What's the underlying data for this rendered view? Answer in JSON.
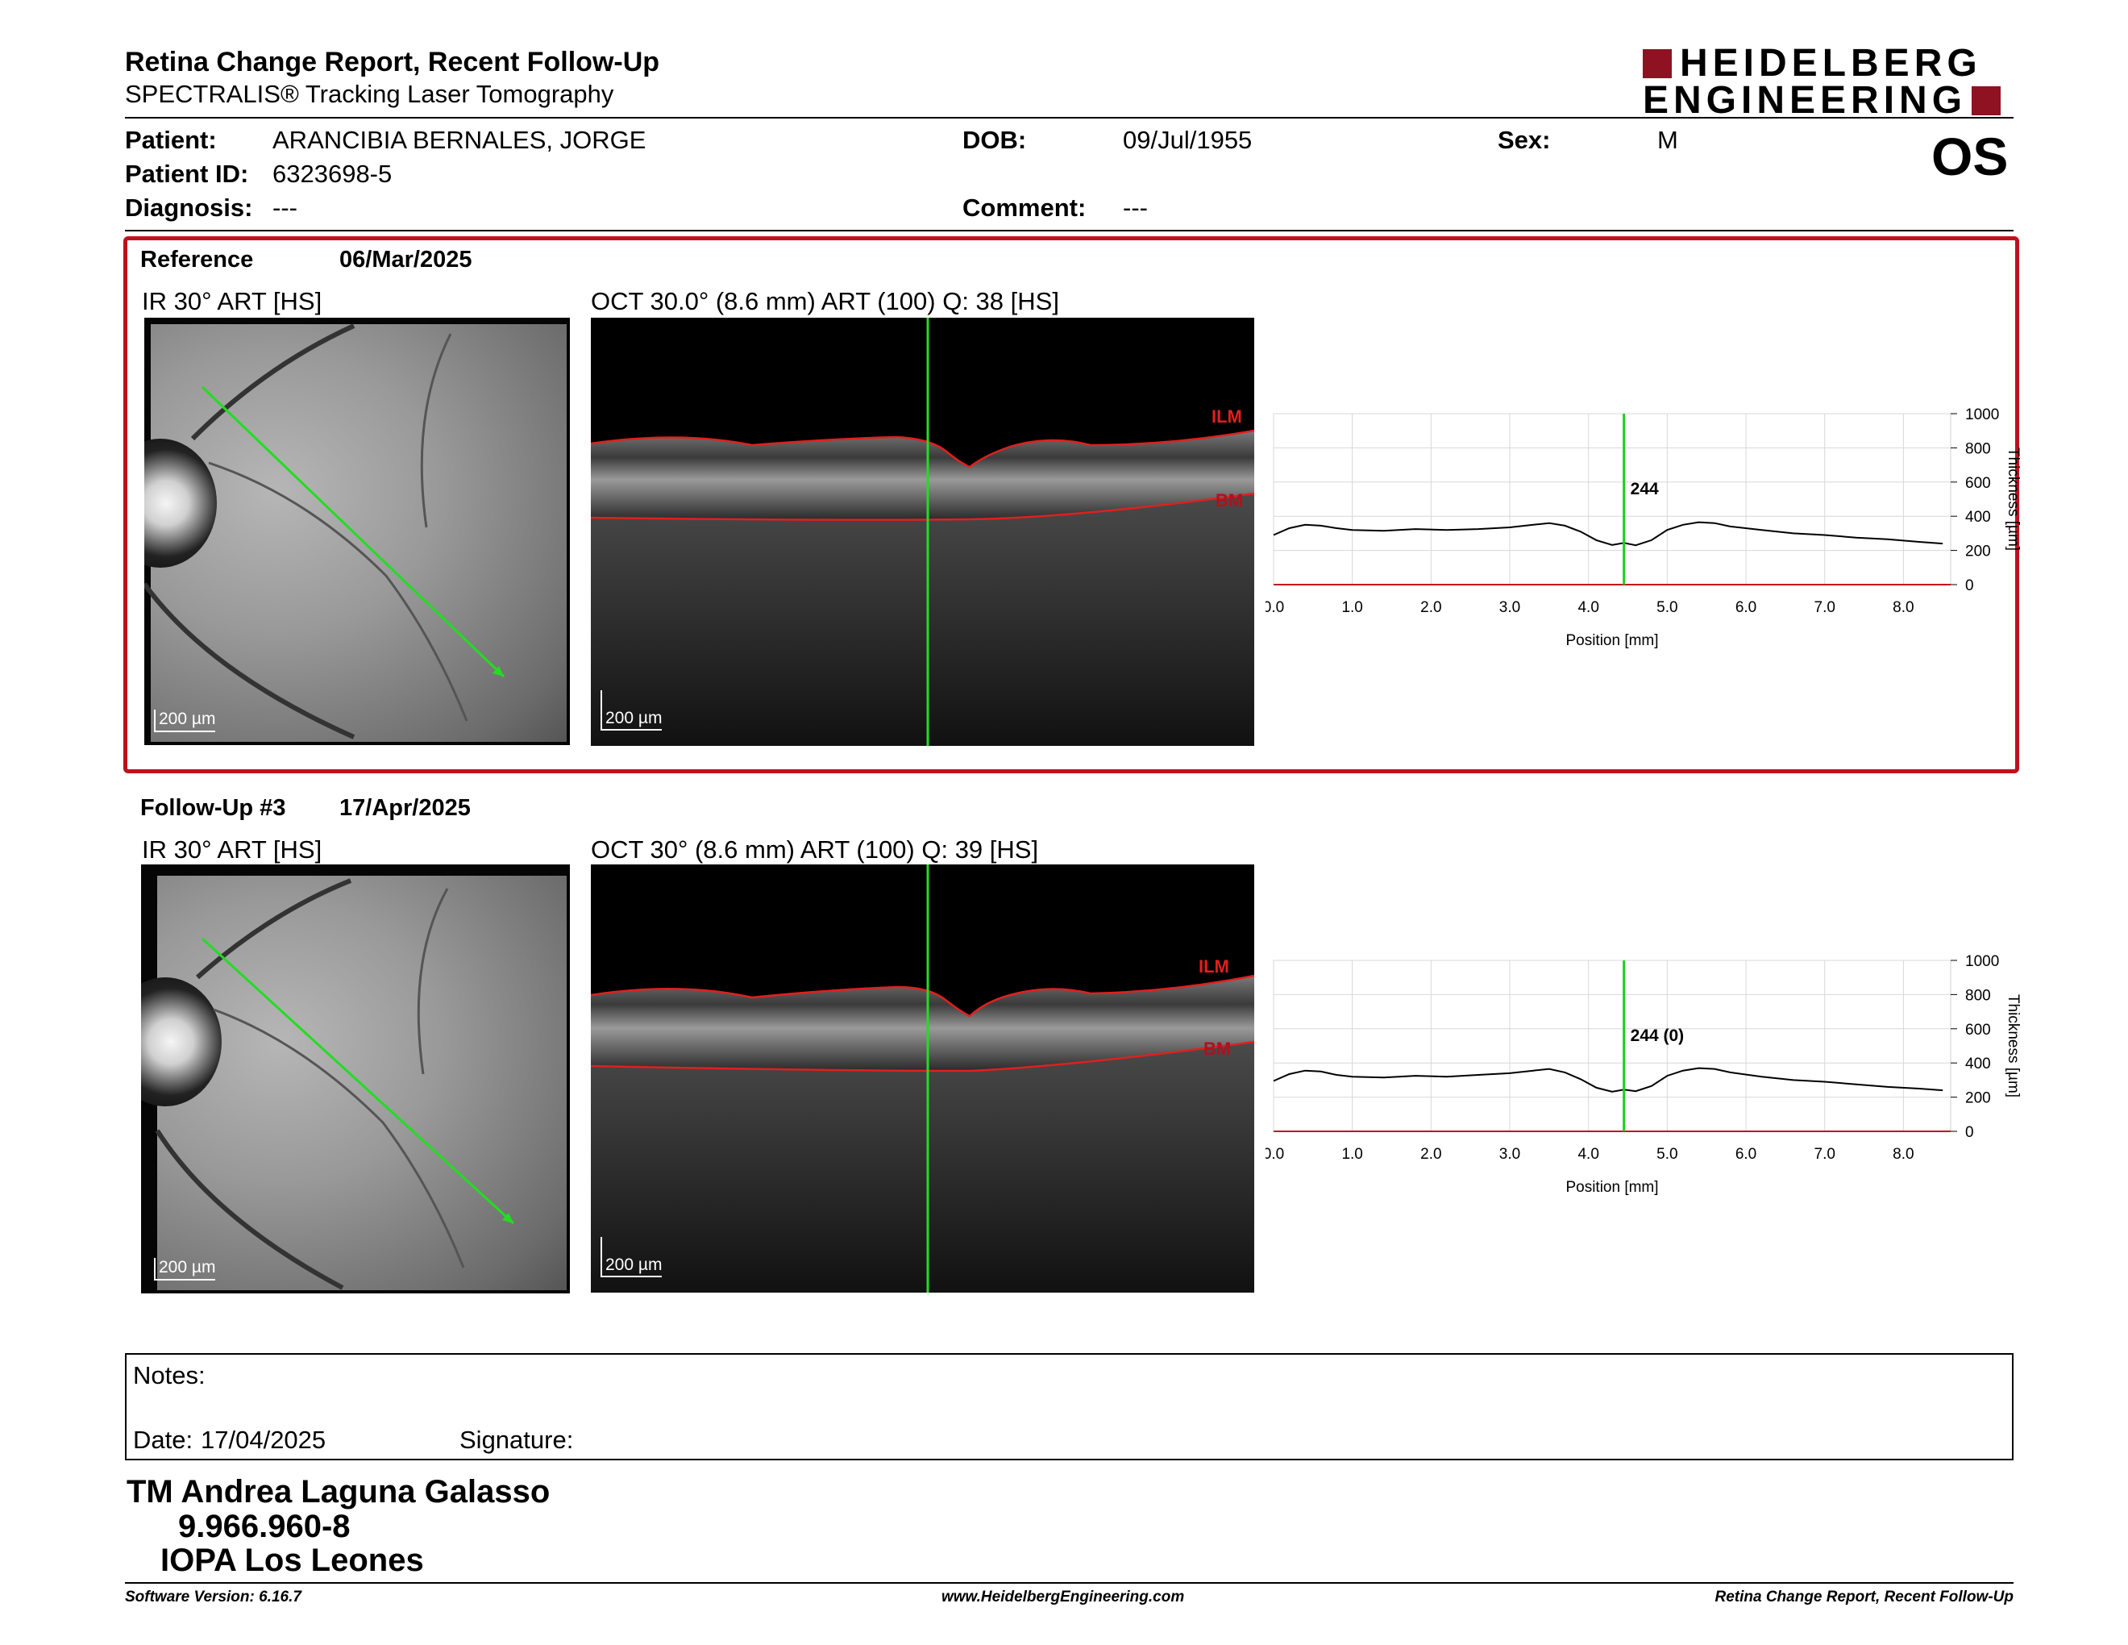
{
  "header": {
    "title": "Retina Change Report, Recent Follow-Up",
    "subtitle": "SPECTRALIS® Tracking Laser Tomography",
    "logo_line1": "HEIDELBERG",
    "logo_line2": "ENGINEERING",
    "logo_color": "#8e1222",
    "eye": "OS"
  },
  "patient": {
    "patient_label": "Patient:",
    "patient_value": "ARANCIBIA BERNALES, JORGE",
    "dob_label": "DOB:",
    "dob_value": "09/Jul/1955",
    "sex_label": "Sex:",
    "sex_value": "M",
    "id_label": "Patient ID:",
    "id_value": "6323698-5",
    "diagnosis_label": "Diagnosis:",
    "diagnosis_value": "---",
    "comment_label": "Comment:",
    "comment_value": "---"
  },
  "reference": {
    "label": "Reference",
    "date": "06/Mar/2025",
    "ir_title": "IR 30° ART [HS]",
    "oct_title": "OCT 30.0° (8.6 mm) ART (100) Q: 38 [HS]",
    "ir_scale": "200 µm",
    "oct_scale": "200 µm",
    "ilm_label": "ILM",
    "bm_label": "BM",
    "marker_value": "244",
    "border_color": "#c0101e"
  },
  "followup": {
    "label": "Follow-Up #3",
    "date": "17/Apr/2025",
    "ir_title": "IR 30° ART [HS]",
    "oct_title": "OCT 30° (8.6 mm) ART (100) Q: 39 [HS]",
    "ir_scale": "200 µm",
    "oct_scale": "200 µm",
    "ilm_label": "ILM",
    "bm_label": "BM",
    "marker_value": "244 (0)"
  },
  "chart_data": [
    {
      "type": "line",
      "xlabel": "Position [mm]",
      "ylabel": "Thickness [µm]",
      "xlim": [
        0,
        8.6
      ],
      "ylim": [
        0,
        1000
      ],
      "x_ticks": [
        "0.0",
        "1.0",
        "2.0",
        "3.0",
        "4.0",
        "5.0",
        "6.0",
        "7.0",
        "8.0"
      ],
      "y_ticks": [
        "0",
        "200",
        "400",
        "600",
        "800",
        "1000"
      ],
      "grid": true,
      "marker_x": 4.45,
      "marker_label": "244",
      "line_color": "#000000",
      "marker_color": "#22cc22",
      "x": [
        0.0,
        0.2,
        0.4,
        0.6,
        0.8,
        1.0,
        1.4,
        1.8,
        2.2,
        2.6,
        3.0,
        3.3,
        3.5,
        3.7,
        3.9,
        4.1,
        4.3,
        4.45,
        4.6,
        4.8,
        5.0,
        5.2,
        5.4,
        5.6,
        5.8,
        6.2,
        6.6,
        7.0,
        7.4,
        7.8,
        8.2,
        8.5
      ],
      "y": [
        290,
        330,
        350,
        345,
        330,
        320,
        315,
        325,
        320,
        325,
        335,
        350,
        360,
        345,
        310,
        260,
        232,
        244,
        230,
        260,
        320,
        350,
        365,
        360,
        340,
        320,
        300,
        290,
        275,
        265,
        250,
        240
      ]
    },
    {
      "type": "line",
      "xlabel": "Position [mm]",
      "ylabel": "Thickness [µm]",
      "xlim": [
        0,
        8.6
      ],
      "ylim": [
        0,
        1000
      ],
      "x_ticks": [
        "0.0",
        "1.0",
        "2.0",
        "3.0",
        "4.0",
        "5.0",
        "6.0",
        "7.0",
        "8.0"
      ],
      "y_ticks": [
        "0",
        "200",
        "400",
        "600",
        "800",
        "1000"
      ],
      "grid": true,
      "marker_x": 4.45,
      "marker_label": "244 (0)",
      "line_color": "#000000",
      "marker_color": "#22cc22",
      "x": [
        0.0,
        0.2,
        0.4,
        0.6,
        0.8,
        1.0,
        1.4,
        1.8,
        2.2,
        2.6,
        3.0,
        3.3,
        3.5,
        3.7,
        3.9,
        4.1,
        4.3,
        4.45,
        4.6,
        4.8,
        5.0,
        5.2,
        5.4,
        5.6,
        5.8,
        6.2,
        6.6,
        7.0,
        7.4,
        7.8,
        8.2,
        8.5
      ],
      "y": [
        295,
        335,
        355,
        350,
        330,
        320,
        315,
        325,
        320,
        330,
        340,
        355,
        365,
        345,
        305,
        255,
        232,
        244,
        235,
        265,
        325,
        355,
        370,
        365,
        345,
        320,
        300,
        290,
        275,
        260,
        250,
        240
      ]
    }
  ],
  "notes": {
    "label": "Notes:",
    "date_label": "Date:",
    "date_value": "17/04/2025",
    "signature_label": "Signature:"
  },
  "signer": {
    "name": "TM Andrea Laguna Galasso",
    "id": "9.966.960-8",
    "institution": "IOPA Los Leones"
  },
  "footer": {
    "software": "Software Version: 6.16.7",
    "website": "www.HeidelbergEngineering.com",
    "report": "Retina Change Report, Recent Follow-Up"
  }
}
